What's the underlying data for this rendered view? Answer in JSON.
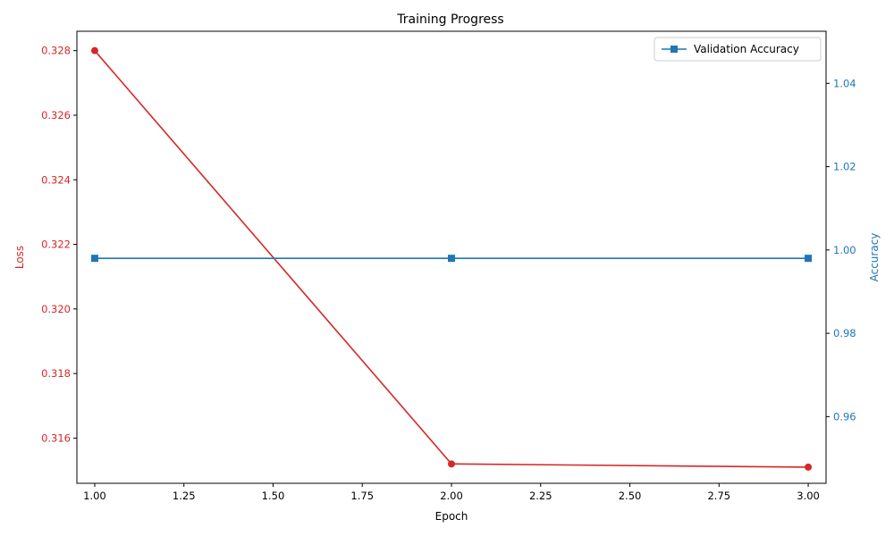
{
  "chart_data": {
    "type": "line",
    "title": "Training Progress",
    "xlabel": "Epoch",
    "ylabel_left": "Loss",
    "ylabel_right": "Accuracy",
    "x": [
      1.0,
      2.0,
      3.0
    ],
    "xlim": [
      0.95,
      3.05
    ],
    "xticks": [
      "1.00",
      "1.25",
      "1.50",
      "1.75",
      "2.00",
      "2.25",
      "2.50",
      "2.75",
      "3.00"
    ],
    "xtick_values": [
      1.0,
      1.25,
      1.5,
      1.75,
      2.0,
      2.25,
      2.5,
      2.75,
      3.0
    ],
    "left_axis": {
      "ylim": [
        0.3146,
        0.3286
      ],
      "ticks": [
        "0.316",
        "0.318",
        "0.320",
        "0.322",
        "0.324",
        "0.326",
        "0.328"
      ],
      "tick_values": [
        0.316,
        0.318,
        0.32,
        0.322,
        0.324,
        0.326,
        0.328
      ],
      "color": "#d62728"
    },
    "right_axis": {
      "ylim": [
        0.944,
        1.0525
      ],
      "ticks": [
        "0.96",
        "0.98",
        "1.00",
        "1.02",
        "1.04"
      ],
      "tick_values": [
        0.96,
        0.98,
        1.0,
        1.02,
        1.04
      ],
      "color": "#1f77b4"
    },
    "series": [
      {
        "axis": "left",
        "values": [
          0.328,
          0.3152,
          0.3151
        ],
        "color": "#d62728",
        "marker": "circle"
      },
      {
        "name": "Validation Accuracy",
        "axis": "right",
        "values": [
          0.998,
          0.998,
          0.998
        ],
        "color": "#1f77b4",
        "marker": "square"
      }
    ],
    "grid": false,
    "legend": "top-right"
  }
}
